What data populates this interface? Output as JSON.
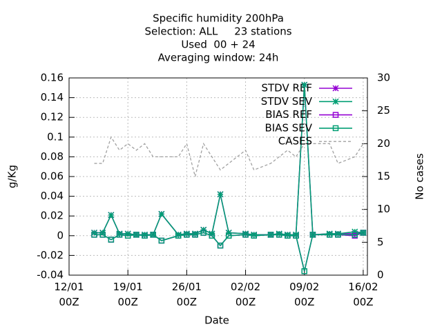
{
  "chart_data": {
    "type": "line",
    "title": [
      "Specific humidity 200hPa",
      "Selection: ALL     23 stations",
      "Used  00 + 24",
      "Averaging window: 24h"
    ],
    "xlabel": "Date",
    "ylabel": "g/Kg",
    "y2label": "No cases",
    "x": [
      "15/01 00Z",
      "16/01 00Z",
      "17/01 00Z",
      "18/01 00Z",
      "19/01 00Z",
      "20/01 00Z",
      "21/01 00Z",
      "22/01 00Z",
      "23/01 00Z",
      "25/01 00Z",
      "26/01 00Z",
      "27/01 00Z",
      "28/01 00Z",
      "29/01 00Z",
      "30/01 00Z",
      "31/01 00Z",
      "02/02 00Z",
      "03/02 00Z",
      "05/02 00Z",
      "06/02 00Z",
      "07/02 00Z",
      "08/02 00Z",
      "09/02 00Z",
      "10/02 00Z",
      "12/02 00Z",
      "13/02 00Z",
      "15/02 00Z",
      "16/02 00Z"
    ],
    "xlim": [
      "12/01 00Z",
      "16/02 12Z"
    ],
    "xticks": [
      "12/01 00Z",
      "19/01 00Z",
      "26/01 00Z",
      "02/02 00Z",
      "09/02 00Z",
      "16/02 00Z"
    ],
    "ylim": [
      -0.04,
      0.16
    ],
    "yticks": [
      -0.04,
      -0.02,
      0,
      0.02,
      0.04,
      0.06,
      0.08,
      0.1,
      0.12,
      0.14,
      0.16
    ],
    "y2lim": [
      0,
      30
    ],
    "y2ticks": [
      0,
      5,
      10,
      15,
      20,
      25,
      30
    ],
    "grid": true,
    "legend": "top-right",
    "series": [
      {
        "name": "STDV REF",
        "color": "#9400d3",
        "marker": "star",
        "values": [
          0.003,
          0.003,
          0.021,
          0.002,
          0.002,
          0.001,
          0.001,
          0.001,
          0.022,
          0.001,
          0.002,
          0.002,
          0.006,
          0.002,
          0.042,
          0.003,
          0.002,
          0.001,
          0.001,
          0.002,
          0.001,
          0.001,
          0.153,
          0.001,
          0.002,
          0.002,
          0.002,
          0.003
        ]
      },
      {
        "name": "STDV SEV",
        "color": "#009e73",
        "marker": "star",
        "values": [
          0.003,
          0.003,
          0.021,
          0.002,
          0.002,
          0.001,
          0.001,
          0.001,
          0.022,
          0.001,
          0.002,
          0.002,
          0.006,
          0.002,
          0.042,
          0.003,
          0.002,
          0.001,
          0.001,
          0.002,
          0.001,
          0.001,
          0.153,
          0.001,
          0.002,
          0.002,
          0.004,
          0.003
        ]
      },
      {
        "name": "BIAS REF",
        "color": "#9400d3",
        "marker": "square",
        "values": [
          0.001,
          0.001,
          -0.004,
          0.001,
          0,
          0.001,
          0,
          0.001,
          -0.005,
          0,
          0.001,
          0.001,
          0.003,
          0,
          -0.01,
          0,
          0.001,
          0,
          0.001,
          0.001,
          0,
          0,
          -0.036,
          0.001,
          0.001,
          0.001,
          0,
          0.003
        ]
      },
      {
        "name": "BIAS SEV",
        "color": "#009e73",
        "marker": "square",
        "values": [
          0.001,
          0.001,
          -0.004,
          0.001,
          0,
          0.001,
          0,
          0.001,
          -0.005,
          0,
          0.001,
          0.001,
          0.003,
          0,
          -0.01,
          0,
          0.001,
          0,
          0.001,
          0.001,
          0,
          0,
          -0.036,
          0.001,
          0.001,
          0.001,
          0.001,
          0.003
        ]
      },
      {
        "name": "CASES",
        "color": "#a0a0a0",
        "marker": "none",
        "dashed": true,
        "axis": "y2",
        "values": [
          17,
          17,
          21,
          19,
          20,
          19,
          20,
          18,
          18,
          18,
          20,
          15,
          20,
          18,
          16,
          17,
          19,
          16,
          17,
          18,
          19,
          18,
          20,
          20,
          20,
          17,
          18,
          20
        ]
      }
    ]
  }
}
